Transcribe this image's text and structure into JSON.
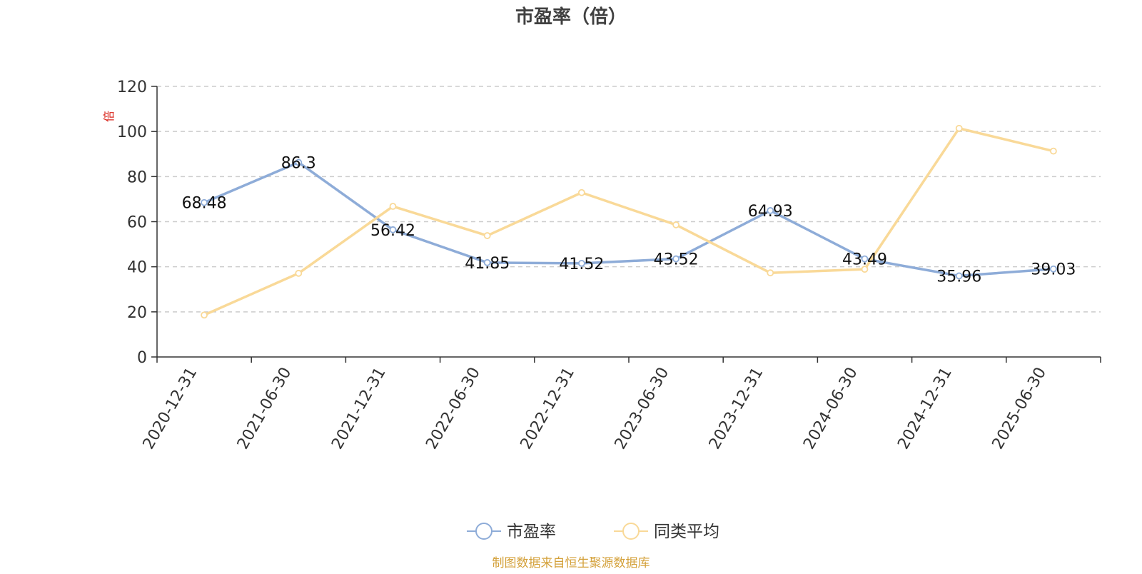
{
  "chart_data": {
    "type": "line",
    "title": "市盈率（倍）",
    "ylabel": "倍",
    "xlabel": "",
    "ylim": [
      0,
      120
    ],
    "yticks": [
      0,
      20,
      40,
      60,
      80,
      100,
      120
    ],
    "grid": true,
    "legend_position": "bottom-center",
    "categories": [
      "2020-12-31",
      "2021-06-30",
      "2021-12-31",
      "2022-06-30",
      "2022-12-31",
      "2023-06-30",
      "2023-12-31",
      "2024-06-30",
      "2024-12-31",
      "2025-06-30"
    ],
    "series": [
      {
        "name": "市盈率",
        "color": "#8eacd8",
        "values": [
          68.48,
          86.3,
          56.42,
          41.85,
          41.52,
          43.52,
          64.93,
          43.49,
          35.96,
          39.03
        ],
        "labels": [
          "68.48",
          "86.3",
          "56.42",
          "41.85",
          "41.52",
          "43.52",
          "64.93",
          "43.49",
          "35.96",
          "39.03"
        ],
        "show_labels": true
      },
      {
        "name": "同类平均",
        "color": "#f9d998",
        "values": [
          18.6,
          37.1,
          66.8,
          53.8,
          72.9,
          58.6,
          37.3,
          38.9,
          101.4,
          91.3
        ],
        "show_labels": false
      }
    ]
  },
  "footer": {
    "source_text": "制图数据来自恒生聚源数据库",
    "source_color": "#d4a13b"
  }
}
